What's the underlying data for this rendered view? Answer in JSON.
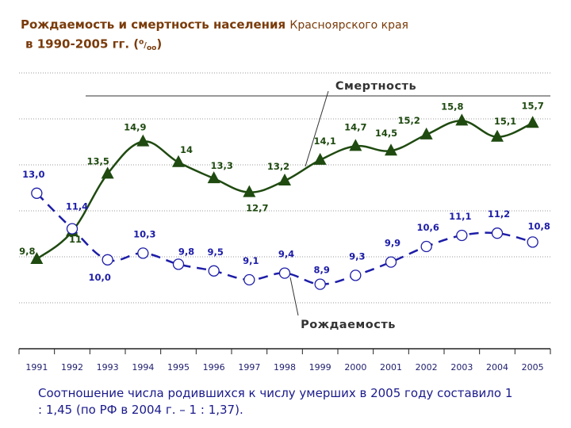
{
  "title": {
    "line1_bold": "Рождаемость и смертность населения",
    "line1_small": "Красноярского края",
    "line2": "в 1990-2005 гг. (",
    "unit_sup": "о",
    "unit_sub": "оо",
    "line2_end": ")"
  },
  "chart_data": {
    "type": "line",
    "categories": [
      "1991",
      "1992",
      "1993",
      "1994",
      "1995",
      "1996",
      "1997",
      "1998",
      "1999",
      "2000",
      "2001",
      "2002",
      "2003",
      "2004",
      "2005"
    ],
    "series": [
      {
        "name": "Смертность",
        "color": "#1f4a10",
        "marker": "triangle",
        "values": [
          9.8,
          11,
          13.5,
          14.9,
          14,
          13.3,
          12.7,
          13.2,
          14.1,
          14.7,
          14.5,
          15.2,
          15.8,
          15.1,
          15.7
        ],
        "labels": [
          "9,8",
          "11",
          "13,5",
          "14,9",
          "14",
          "13,3",
          "12,7",
          "13,2",
          "14,1",
          "14,7",
          "14,5",
          "15,2",
          "15,8",
          "15,1",
          "15,7"
        ]
      },
      {
        "name": "Рождаемость",
        "color": "#1d1da8",
        "marker": "circle",
        "values": [
          13.0,
          11.4,
          10.0,
          10.3,
          9.8,
          9.5,
          9.1,
          9.4,
          8.9,
          9.3,
          9.9,
          10.6,
          11.1,
          11.2,
          10.8
        ],
        "labels": [
          "13,0",
          "11,4",
          "10,0",
          "10,3",
          "9,8",
          "9,5",
          "9,1",
          "9,4",
          "8,9",
          "9,3",
          "9,9",
          "10,6",
          "11,1",
          "11,2",
          "10,8"
        ]
      }
    ],
    "annotations": {
      "mortality": "Смертность",
      "birth": "Рождаемость"
    },
    "grid": true
  },
  "note": "Соотношение числа родившихся к числу умерших в 2005 году составило 1 : 1,45 (по РФ в 2004 г. – 1 : 1,37)."
}
